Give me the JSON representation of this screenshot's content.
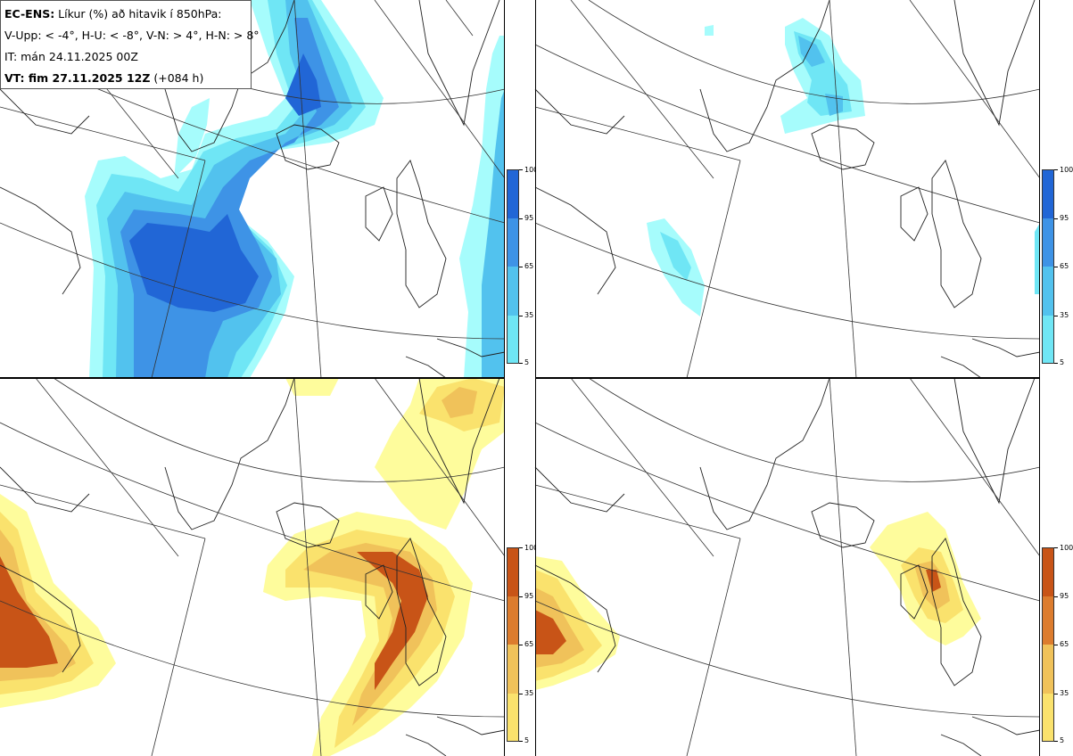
{
  "legend": {
    "line1_bold": "EC-ENS:",
    "line1_rest": " Líkur (%) að hitavik í 850hPa:",
    "line2": "V-Upp: < -4°, H-U: < -8°, V-N: > 4°, H-N: > 8°",
    "line3": "IT: mán 24.11.2025 00Z",
    "line4_bold": "VT: fim 27.11.2025 12Z",
    "line4_rest": " (+084 h)"
  },
  "colorbar": {
    "ticks": [
      "100",
      "95",
      "65",
      "35",
      "5"
    ],
    "cold_colors": [
      "#2166d6",
      "#3e93e6",
      "#52c2ee",
      "#6fe6f5",
      "#a6fcfc"
    ],
    "warm_colors": [
      "#c85417",
      "#dc7c2e",
      "#f0c25a",
      "#fae26d",
      "#fefc9c"
    ]
  },
  "panels": [
    {
      "id": "V-Upp",
      "scheme": "cold"
    },
    {
      "id": "H-U",
      "scheme": "cold"
    },
    {
      "id": "V-N",
      "scheme": "warm"
    },
    {
      "id": "H-N",
      "scheme": "warm"
    }
  ]
}
